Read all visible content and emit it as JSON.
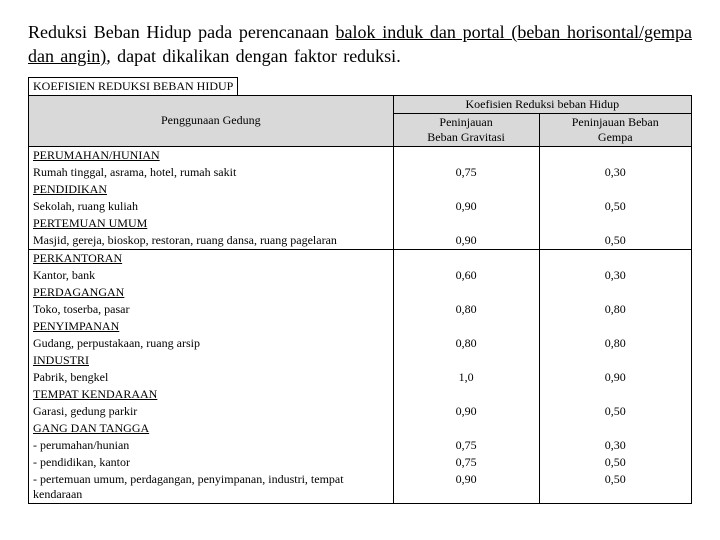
{
  "title": {
    "pre": "Reduksi  Beban  Hidup  pada perencanaan ",
    "u1": "balok induk dan portal (beban horisontal/gempa  dan  angin)",
    "post": ",  dapat  dikalikan  dengan  faktor  reduksi."
  },
  "tableTitle": "KOEFISIEN REDUKSI BEBAN HIDUP",
  "header": {
    "col1": "Penggunaan Gedung",
    "grp": "Koefisien Reduksi beban Hidup",
    "col2a": "Peninjauan",
    "col2b": "Beban Gravitasi",
    "col3a": "Peninjauan Beban",
    "col3b": "Gempa"
  },
  "rows": [
    {
      "t": "cat",
      "c1": "PERUMAHAN/HUNIAN",
      "c2": "",
      "c3": ""
    },
    {
      "t": "val",
      "c1": "Rumah tinggal, asrama, hotel, rumah sakit",
      "c2": "0,75",
      "c3": "0,30"
    },
    {
      "t": "cat",
      "c1": "PENDIDIKAN",
      "c2": "",
      "c3": ""
    },
    {
      "t": "val",
      "c1": "Sekolah, ruang kuliah",
      "c2": "0,90",
      "c3": "0,50"
    },
    {
      "t": "cat",
      "c1": "PERTEMUAN UMUM",
      "c2": "",
      "c3": ""
    },
    {
      "t": "valsep",
      "c1": "Masjid, gereja, bioskop, restoran, ruang dansa, ruang pagelaran",
      "c2": "0,90",
      "c3": "0,50"
    },
    {
      "t": "cat",
      "c1": "PERKANTORAN",
      "c2": "",
      "c3": ""
    },
    {
      "t": "val",
      "c1": "Kantor, bank",
      "c2": "0,60",
      "c3": "0,30"
    },
    {
      "t": "cat",
      "c1": "PERDAGANGAN",
      "c2": "",
      "c3": ""
    },
    {
      "t": "val",
      "c1": "Toko, toserba, pasar",
      "c2": "0,80",
      "c3": "0,80"
    },
    {
      "t": "cat",
      "c1": "PENYIMPANAN",
      "c2": "",
      "c3": ""
    },
    {
      "t": "val",
      "c1": "Gudang, perpustakaan, ruang arsip",
      "c2": "0,80",
      "c3": "0,80"
    },
    {
      "t": "cat",
      "c1": "INDUSTRI",
      "c2": "",
      "c3": ""
    },
    {
      "t": "val",
      "c1": "Pabrik, bengkel",
      "c2": "1,0",
      "c3": "0,90"
    },
    {
      "t": "cat",
      "c1": "TEMPAT KENDARAAN",
      "c2": "",
      "c3": ""
    },
    {
      "t": "val",
      "c1": "Garasi, gedung parkir",
      "c2": "0,90",
      "c3": "0,50"
    },
    {
      "t": "cat",
      "c1": "GANG DAN TANGGA",
      "c2": "",
      "c3": ""
    },
    {
      "t": "val",
      "c1": "- perumahan/hunian",
      "c2": "0,75",
      "c3": "0,30"
    },
    {
      "t": "val",
      "c1": "- pendidikan, kantor",
      "c2": "0,75",
      "c3": "0,50"
    },
    {
      "t": "val",
      "c1": "- pertemuan umum, perdagangan, penyimpanan, industri, tempat kendaraan",
      "c2": "0,90",
      "c3": "0,50"
    }
  ]
}
